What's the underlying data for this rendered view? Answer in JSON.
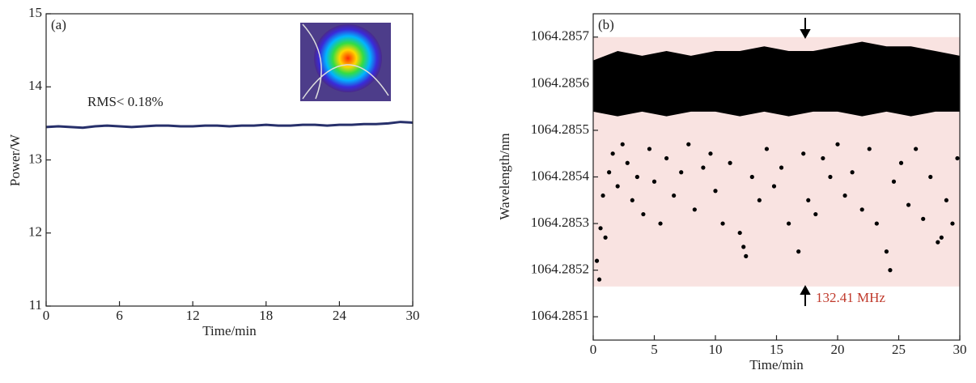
{
  "chart_data": [
    {
      "type": "line",
      "panel_label": "(a)",
      "annotation": "RMS< 0.18%",
      "x_label": "Time/min",
      "y_label": "Power/W",
      "x": [
        0,
        1,
        2,
        3,
        4,
        5,
        6,
        7,
        8,
        9,
        10,
        11,
        12,
        13,
        14,
        15,
        16,
        17,
        18,
        19,
        20,
        21,
        22,
        23,
        24,
        25,
        26,
        27,
        28,
        29,
        30
      ],
      "values": [
        13.45,
        13.46,
        13.45,
        13.44,
        13.46,
        13.47,
        13.46,
        13.45,
        13.46,
        13.47,
        13.47,
        13.46,
        13.46,
        13.47,
        13.47,
        13.46,
        13.47,
        13.47,
        13.48,
        13.47,
        13.47,
        13.48,
        13.48,
        13.47,
        13.48,
        13.48,
        13.49,
        13.49,
        13.5,
        13.52,
        13.51
      ],
      "color": "#27306b",
      "xlim": [
        0,
        30
      ],
      "xticks": [
        0,
        6,
        12,
        18,
        24,
        30
      ],
      "ylim": [
        11,
        15
      ],
      "yticks": [
        11,
        12,
        13,
        14,
        15
      ]
    },
    {
      "type": "scatter",
      "panel_label": "(b)",
      "annotation": "132.41 MHz",
      "x_label": "Time/min",
      "y_label": "Wavelength/nm",
      "color": "#000000",
      "shaded_range": [
        1064.285165,
        1064.2857
      ],
      "shade_color": "#f9e3e1",
      "dense_region": {
        "x": [
          0,
          2,
          4,
          6,
          8,
          10,
          12,
          14,
          16,
          18,
          20,
          22,
          24,
          26,
          28,
          30
        ],
        "upper": [
          1064.28565,
          1064.28567,
          1064.28566,
          1064.28567,
          1064.28566,
          1064.28567,
          1064.28567,
          1064.28568,
          1064.28567,
          1064.28567,
          1064.28568,
          1064.28569,
          1064.28568,
          1064.28568,
          1064.28567,
          1064.28566
        ],
        "lower": [
          1064.28554,
          1064.28553,
          1064.28554,
          1064.28553,
          1064.28554,
          1064.28554,
          1064.28553,
          1064.28554,
          1064.28553,
          1064.28554,
          1064.28554,
          1064.28553,
          1064.28554,
          1064.28553,
          1064.28554,
          1064.28554
        ]
      },
      "x": [
        0.3,
        0.5,
        0.6,
        0.8,
        1.0,
        1.3,
        1.6,
        2.0,
        2.4,
        2.8,
        3.2,
        3.6,
        4.1,
        4.6,
        5.0,
        5.5,
        6.0,
        6.6,
        7.2,
        7.8,
        8.3,
        9.0,
        9.6,
        10.0,
        10.6,
        11.2,
        12.0,
        12.3,
        12.5,
        13.0,
        13.6,
        14.2,
        14.8,
        15.4,
        16.0,
        16.8,
        17.2,
        17.6,
        18.2,
        18.8,
        19.4,
        20.0,
        20.6,
        21.2,
        22.0,
        22.6,
        23.2,
        24.0,
        24.3,
        24.6,
        25.2,
        25.8,
        26.4,
        27.0,
        27.6,
        28.2,
        28.5,
        28.9,
        29.4,
        29.8
      ],
      "values": [
        1064.28522,
        1064.28518,
        1064.28529,
        1064.28536,
        1064.28527,
        1064.28541,
        1064.28545,
        1064.28538,
        1064.28547,
        1064.28543,
        1064.28535,
        1064.2854,
        1064.28532,
        1064.28546,
        1064.28539,
        1064.2853,
        1064.28544,
        1064.28536,
        1064.28541,
        1064.28547,
        1064.28533,
        1064.28542,
        1064.28545,
        1064.28537,
        1064.2853,
        1064.28543,
        1064.28528,
        1064.28525,
        1064.28523,
        1064.2854,
        1064.28535,
        1064.28546,
        1064.28538,
        1064.28542,
        1064.2853,
        1064.28524,
        1064.28545,
        1064.28535,
        1064.28532,
        1064.28544,
        1064.2854,
        1064.28547,
        1064.28536,
        1064.28541,
        1064.28533,
        1064.28546,
        1064.2853,
        1064.28524,
        1064.2852,
        1064.28539,
        1064.28543,
        1064.28534,
        1064.28546,
        1064.28531,
        1064.2854,
        1064.28526,
        1064.28527,
        1064.28535,
        1064.2853,
        1064.28544
      ],
      "xlim": [
        0,
        30
      ],
      "xticks": [
        0,
        5,
        10,
        15,
        20,
        25,
        30
      ],
      "ylim": [
        1064.28505,
        1064.28575
      ],
      "yticks": [
        1064.2851,
        1064.2852,
        1064.2853,
        1064.2854,
        1064.2855,
        1064.2856,
        1064.2857
      ]
    }
  ]
}
